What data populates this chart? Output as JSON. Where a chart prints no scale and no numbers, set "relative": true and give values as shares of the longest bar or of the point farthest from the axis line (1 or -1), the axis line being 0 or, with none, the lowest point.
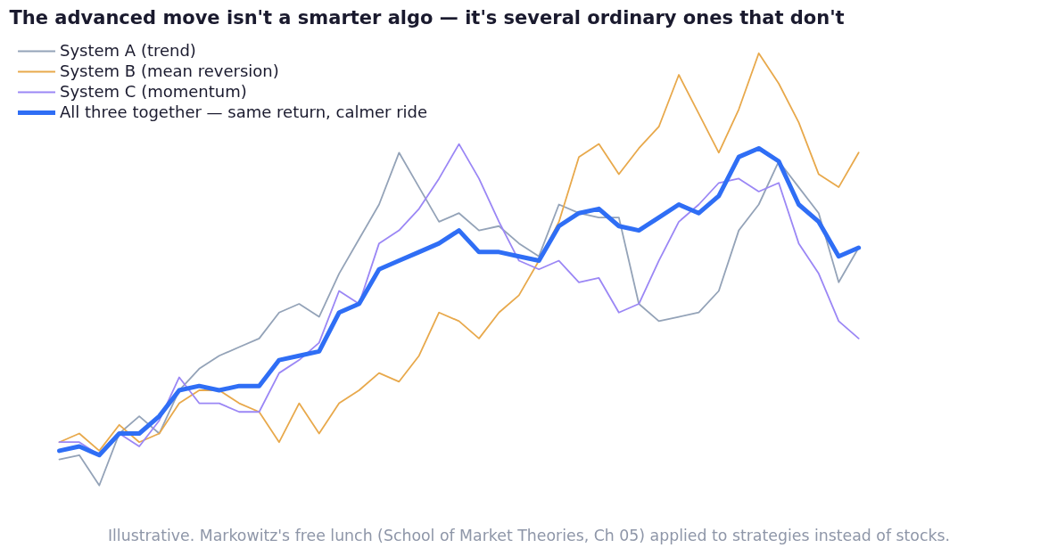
{
  "chart_data": {
    "type": "line",
    "title": "The advanced move isn't a smarter algo — it's several ordinary ones that don't",
    "relative": true,
    "legend": "top left",
    "grid": false,
    "categories": [
      null,
      null,
      null,
      null,
      null,
      null,
      null,
      null,
      null,
      null,
      null,
      null,
      null,
      null,
      null,
      null,
      null,
      null,
      null,
      null,
      null,
      null,
      null,
      null,
      null,
      null,
      null,
      null,
      null,
      null,
      null,
      null,
      null,
      null,
      null,
      null,
      null,
      null,
      null,
      null,
      null
    ],
    "series": [
      {
        "name": "System A (trend)",
        "color": "#94a3b8",
        "values": [
          0.06,
          0.07,
          0,
          0.12,
          0.16,
          0.12,
          0.22,
          0.27,
          0.3,
          0.32,
          0.34,
          0.4,
          0.42,
          0.39,
          0.49,
          0.57,
          0.65,
          0.77,
          0.69,
          0.61,
          0.63,
          0.59,
          0.6,
          0.56,
          0.53,
          0.65,
          0.63,
          0.62,
          0.62,
          0.42,
          0.38,
          0.39,
          0.4,
          0.45,
          0.59,
          0.65,
          0.75,
          0.69,
          0.63,
          0.47,
          0.55
        ]
      },
      {
        "name": "System B (mean reversion)",
        "color": "#e8a94c",
        "values": [
          0.1,
          0.12,
          0.08,
          0.14,
          0.1,
          0.12,
          0.19,
          0.22,
          0.22,
          0.19,
          0.17,
          0.1,
          0.19,
          0.12,
          0.19,
          0.22,
          0.26,
          0.24,
          0.3,
          0.4,
          0.38,
          0.34,
          0.4,
          0.44,
          0.52,
          0.61,
          0.76,
          0.79,
          0.72,
          0.78,
          0.83,
          0.95,
          0.86,
          0.77,
          0.87,
          1.0,
          0.93,
          0.84,
          0.72,
          0.69,
          0.77
        ]
      },
      {
        "name": "System C (momentum)",
        "color": "#9b87f5",
        "values": [
          0.1,
          0.1,
          0.07,
          0.12,
          0.09,
          0.15,
          0.25,
          0.19,
          0.19,
          0.17,
          0.17,
          0.26,
          0.29,
          0.33,
          0.45,
          0.42,
          0.56,
          0.59,
          0.64,
          0.71,
          0.79,
          0.71,
          0.61,
          0.52,
          0.5,
          0.52,
          0.47,
          0.48,
          0.4,
          0.42,
          0.52,
          0.61,
          0.65,
          0.7,
          0.71,
          0.68,
          0.7,
          0.56,
          0.49,
          0.38,
          0.34
        ]
      },
      {
        "name": "All three together — same return, calmer ride",
        "color": "#2f6ef5",
        "values": [
          0.08,
          0.09,
          0.07,
          0.12,
          0.12,
          0.16,
          0.22,
          0.23,
          0.22,
          0.23,
          0.23,
          0.29,
          0.3,
          0.31,
          0.4,
          0.42,
          0.5,
          0.52,
          0.54,
          0.56,
          0.59,
          0.54,
          0.54,
          0.53,
          0.52,
          0.6,
          0.63,
          0.64,
          0.6,
          0.59,
          0.62,
          0.65,
          0.63,
          0.67,
          0.76,
          0.78,
          0.75,
          0.65,
          0.61,
          0.53,
          0.55
        ]
      }
    ],
    "annotations": [
      "Illustrative. Markowitz's free lunch (School of Market Theories, Ch 05) applied to strategies instead of stocks."
    ]
  }
}
